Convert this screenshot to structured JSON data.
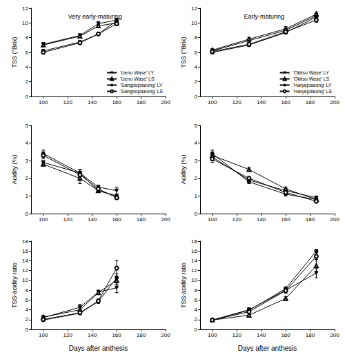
{
  "chart_data": [
    {
      "type": "line",
      "title": "Very early-maturing",
      "ylabel": "TSS (°Brix)",
      "x": [
        100,
        130,
        145,
        160
      ],
      "xlim": [
        90,
        200
      ],
      "xticks": [
        100,
        120,
        140,
        160,
        180,
        200
      ],
      "ylim": [
        0,
        12
      ],
      "yticks": [
        0,
        2,
        4,
        6,
        8,
        10,
        12
      ],
      "legend": "lower right",
      "series": [
        {
          "name": "'Ueno Wase' LY",
          "color": "#000000",
          "marker": "triangle_down",
          "values": [
            7.1,
            8.3,
            9.9,
            10.4
          ],
          "errors": [
            0.2,
            0.2,
            0.3,
            0.2
          ]
        },
        {
          "name": "'Ueno Wase' LS",
          "color": "#000000",
          "marker": "triangle_open",
          "values": [
            7.0,
            8.2,
            9.6,
            10.0
          ],
          "errors": [
            0.2,
            0.2,
            0.2,
            0.3
          ]
        },
        {
          "name": "'Sangdojoseong' LY",
          "color": "#000000",
          "marker": "circle",
          "values": [
            6.2,
            7.4,
            8.5,
            10.3
          ],
          "errors": [
            0.2,
            0.2,
            0.2,
            0.2
          ]
        },
        {
          "name": "'Sangdojoseong' LS",
          "color": "#000000",
          "marker": "circle_open",
          "values": [
            6.0,
            7.3,
            8.5,
            9.9
          ],
          "errors": [
            0.2,
            0.2,
            0.2,
            0.2
          ]
        }
      ]
    },
    {
      "type": "line",
      "title": "Early-maturing",
      "ylabel": "TSS (°Brix)",
      "x": [
        100,
        130,
        160,
        185
      ],
      "xlim": [
        90,
        200
      ],
      "xticks": [
        100,
        120,
        140,
        160,
        180,
        200
      ],
      "ylim": [
        0,
        12
      ],
      "yticks": [
        0,
        2,
        4,
        6,
        8,
        10,
        12
      ],
      "legend": "lower right",
      "series": [
        {
          "name": "'Okitsu Wase' LY",
          "color": "#000000",
          "marker": "triangle_down",
          "values": [
            6.2,
            7.6,
            9.0,
            11.0
          ],
          "errors": [
            0.2,
            0.2,
            0.3,
            0.3
          ]
        },
        {
          "name": "'Okitsu Wase' LS",
          "color": "#000000",
          "marker": "triangle_open",
          "values": [
            6.3,
            7.8,
            9.2,
            11.2
          ],
          "errors": [
            0.2,
            0.2,
            0.3,
            0.3
          ]
        },
        {
          "name": "'Haryejoseong' LY",
          "color": "#000000",
          "marker": "circle",
          "values": [
            6.0,
            7.0,
            8.7,
            10.8
          ],
          "errors": [
            0.2,
            0.2,
            0.2,
            0.3
          ]
        },
        {
          "name": "'Haryejoseong' LS",
          "color": "#000000",
          "marker": "circle_open",
          "values": [
            6.1,
            7.1,
            8.8,
            10.4
          ],
          "errors": [
            0.2,
            0.2,
            0.2,
            0.3
          ]
        }
      ]
    },
    {
      "type": "line",
      "ylabel": "Acidity (%)",
      "x": [
        100,
        130,
        145,
        160
      ],
      "xlim": [
        90,
        200
      ],
      "xticks": [
        100,
        120,
        140,
        160,
        180,
        200
      ],
      "ylim": [
        0,
        5
      ],
      "yticks": [
        0,
        1,
        2,
        3,
        4,
        5
      ],
      "series": [
        {
          "name": "'Ueno Wase' LY",
          "color": "#000000",
          "marker": "triangle_down",
          "values": [
            2.9,
            2.3,
            1.5,
            1.3
          ],
          "errors": [
            0.1,
            0.2,
            0.1,
            0.2
          ]
        },
        {
          "name": "'Ueno Wase' LS",
          "color": "#000000",
          "marker": "triangle_open",
          "values": [
            2.8,
            2.0,
            1.3,
            1.0
          ],
          "errors": [
            0.1,
            0.3,
            0.1,
            0.1
          ]
        },
        {
          "name": "'Sangdojoseong' LY",
          "color": "#000000",
          "marker": "circle",
          "values": [
            3.4,
            2.3,
            1.3,
            1.0
          ],
          "errors": [
            0.2,
            0.2,
            0.1,
            0.1
          ]
        },
        {
          "name": "'Sangdojoseong' LS",
          "color": "#000000",
          "marker": "circle_open",
          "values": [
            3.3,
            2.2,
            1.4,
            0.9
          ],
          "errors": [
            0.2,
            0.2,
            0.1,
            0.1
          ]
        }
      ]
    },
    {
      "type": "line",
      "ylabel": "Acidity (%)",
      "x": [
        100,
        130,
        160,
        185
      ],
      "xlim": [
        90,
        200
      ],
      "xticks": [
        100,
        120,
        140,
        160,
        180,
        200
      ],
      "ylim": [
        0,
        5
      ],
      "yticks": [
        0,
        1,
        2,
        3,
        4,
        5
      ],
      "series": [
        {
          "name": "'Okitsu Wase' LY",
          "color": "#000000",
          "marker": "triangle_down",
          "values": [
            3.2,
            1.9,
            1.3,
            0.9
          ],
          "errors": [
            0.2,
            0.1,
            0.1,
            0.1
          ]
        },
        {
          "name": "'Okitsu Wase' LS",
          "color": "#000000",
          "marker": "triangle_open",
          "values": [
            3.3,
            2.5,
            1.4,
            0.8
          ],
          "errors": [
            0.2,
            0.1,
            0.1,
            0.1
          ]
        },
        {
          "name": "'Haryejoseong' LY",
          "color": "#000000",
          "marker": "circle",
          "values": [
            3.4,
            1.8,
            1.1,
            0.8
          ],
          "errors": [
            0.2,
            0.1,
            0.1,
            0.1
          ]
        },
        {
          "name": "'Haryejoseong' LS",
          "color": "#000000",
          "marker": "circle_open",
          "values": [
            3.1,
            2.0,
            1.2,
            0.7
          ],
          "errors": [
            0.2,
            0.1,
            0.1,
            0.1
          ]
        }
      ]
    },
    {
      "type": "line",
      "ylabel": "TSS-acidity ratio",
      "xlabel": "Days after anthesis",
      "x": [
        100,
        130,
        145,
        160
      ],
      "xlim": [
        90,
        200
      ],
      "xticks": [
        100,
        120,
        140,
        160,
        180,
        200
      ],
      "ylim": [
        0,
        18
      ],
      "yticks": [
        0,
        2,
        4,
        6,
        8,
        10,
        12,
        14,
        16,
        18
      ],
      "series": [
        {
          "name": "'Ueno Wase' LY",
          "color": "#000000",
          "marker": "triangle_down",
          "values": [
            2.4,
            4.5,
            7.6,
            8.5
          ],
          "errors": [
            0.3,
            0.6,
            0.4,
            1.0
          ]
        },
        {
          "name": "'Ueno Wase' LS",
          "color": "#000000",
          "marker": "triangle_open",
          "values": [
            2.5,
            4.0,
            7.5,
            10.0
          ],
          "errors": [
            0.3,
            0.5,
            0.4,
            0.8
          ]
        },
        {
          "name": "'Sangdojoseong' LY",
          "color": "#000000",
          "marker": "circle",
          "values": [
            1.9,
            3.3,
            5.7,
            10.5
          ],
          "errors": [
            0.2,
            0.3,
            0.4,
            0.9
          ]
        },
        {
          "name": "'Sangdojoseong' LS",
          "color": "#000000",
          "marker": "circle_open",
          "values": [
            2.0,
            3.4,
            5.8,
            12.5
          ],
          "errors": [
            0.2,
            0.3,
            0.4,
            1.6
          ]
        }
      ]
    },
    {
      "type": "line",
      "ylabel": "TSS-acidity ratio",
      "xlabel": "Days after anthesis",
      "x": [
        100,
        130,
        160,
        185
      ],
      "xlim": [
        90,
        200
      ],
      "xticks": [
        100,
        120,
        140,
        160,
        180,
        200
      ],
      "ylim": [
        0,
        18
      ],
      "yticks": [
        0,
        2,
        4,
        6,
        8,
        10,
        12,
        14,
        16,
        18
      ],
      "series": [
        {
          "name": "'Okitsu Wase' LY",
          "color": "#000000",
          "marker": "triangle_down",
          "values": [
            1.9,
            4.0,
            8.0,
            11.5
          ],
          "errors": [
            0.1,
            0.4,
            0.5,
            1.0
          ]
        },
        {
          "name": "'Okitsu Wase' LS",
          "color": "#000000",
          "marker": "triangle_open",
          "values": [
            1.9,
            2.9,
            6.3,
            13.0
          ],
          "errors": [
            0.1,
            0.2,
            0.4,
            1.3
          ]
        },
        {
          "name": "'Haryejoseong' LY",
          "color": "#000000",
          "marker": "circle",
          "values": [
            1.9,
            3.9,
            8.3,
            16.0
          ],
          "errors": [
            0.1,
            0.3,
            0.4,
            0.3
          ]
        },
        {
          "name": "'Haryejoseong' LS",
          "color": "#000000",
          "marker": "circle_open",
          "values": [
            1.9,
            3.6,
            7.9,
            14.9
          ],
          "errors": [
            0.1,
            0.3,
            0.5,
            0.7
          ]
        }
      ]
    }
  ]
}
